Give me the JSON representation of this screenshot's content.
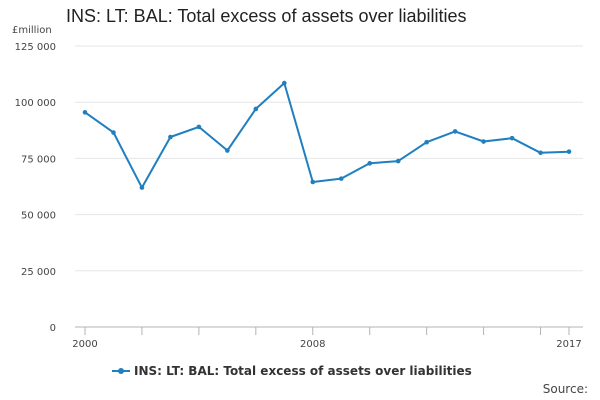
{
  "chart_data": {
    "type": "line",
    "title": "INS: LT: BAL: Total excess of assets over liabilities",
    "ylabel": "£million",
    "xlabel": "",
    "ylim": [
      0,
      125000
    ],
    "yticks": [
      0,
      25000,
      50000,
      75000,
      100000,
      125000
    ],
    "ytick_labels": [
      "0",
      "25 000",
      "50 000",
      "75 000",
      "100 000",
      "125 000"
    ],
    "xlim": [
      2000,
      2017
    ],
    "xticks_major": [
      2000,
      2008,
      2017
    ],
    "xtick_labels": [
      "2000",
      "2008",
      "2017"
    ],
    "x": [
      2000,
      2001,
      2002,
      2003,
      2004,
      2005,
      2006,
      2007,
      2008,
      2009,
      2010,
      2011,
      2012,
      2013,
      2014,
      2015,
      2016,
      2017
    ],
    "series": [
      {
        "name": "INS: LT: BAL: Total excess of assets over liabilities",
        "color": "#1f7fbf",
        "values": [
          95500,
          86500,
          62000,
          84500,
          89000,
          78500,
          97000,
          108500,
          64500,
          66000,
          72800,
          73800,
          82200,
          87000,
          82500,
          84000,
          77500,
          78000
        ]
      }
    ],
    "grid": true,
    "legend_position": "bottom"
  },
  "footer": {
    "source_label": "Source:"
  }
}
